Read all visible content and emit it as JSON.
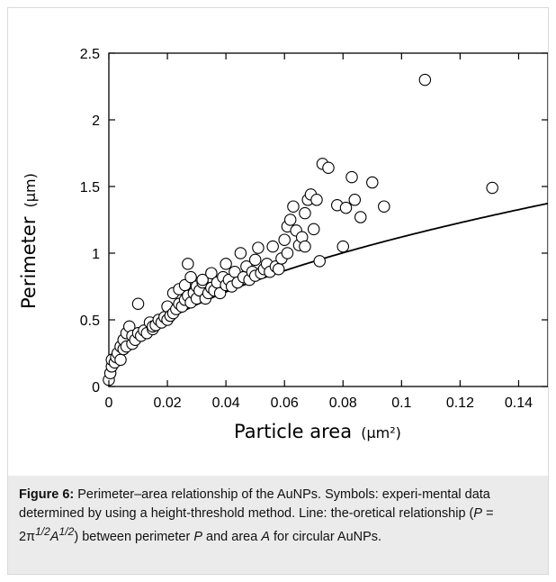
{
  "chart_data": {
    "type": "scatter",
    "xlabel": "Particle area",
    "xunit": "(μm²)",
    "ylabel": "Perimeter",
    "yunit": "(μm)",
    "xlim": [
      0,
      0.15
    ],
    "ylim": [
      0,
      2.5
    ],
    "x_ticks": [
      "0",
      "0.02",
      "0.04",
      "0.06",
      "0.08",
      "0.1",
      "0.12",
      "0.14"
    ],
    "y_ticks": [
      "0",
      "0.5",
      "1",
      "1.5",
      "2",
      "2.5"
    ],
    "grid": false,
    "legend": "none",
    "series": [
      {
        "kind": "scatter-open-circles",
        "points": [
          [
            0.0,
            0.05
          ],
          [
            0.0005,
            0.1
          ],
          [
            0.001,
            0.15
          ],
          [
            0.001,
            0.2
          ],
          [
            0.002,
            0.18
          ],
          [
            0.0025,
            0.22
          ],
          [
            0.003,
            0.25
          ],
          [
            0.004,
            0.3
          ],
          [
            0.004,
            0.2
          ],
          [
            0.005,
            0.28
          ],
          [
            0.005,
            0.35
          ],
          [
            0.006,
            0.3
          ],
          [
            0.006,
            0.4
          ],
          [
            0.007,
            0.45
          ],
          [
            0.008,
            0.32
          ],
          [
            0.008,
            0.38
          ],
          [
            0.009,
            0.35
          ],
          [
            0.01,
            0.4
          ],
          [
            0.01,
            0.62
          ],
          [
            0.011,
            0.38
          ],
          [
            0.012,
            0.42
          ],
          [
            0.013,
            0.4
          ],
          [
            0.014,
            0.48
          ],
          [
            0.015,
            0.43
          ],
          [
            0.015,
            0.45
          ],
          [
            0.016,
            0.46
          ],
          [
            0.017,
            0.5
          ],
          [
            0.018,
            0.48
          ],
          [
            0.019,
            0.52
          ],
          [
            0.02,
            0.5
          ],
          [
            0.02,
            0.6
          ],
          [
            0.021,
            0.53
          ],
          [
            0.022,
            0.55
          ],
          [
            0.022,
            0.7
          ],
          [
            0.023,
            0.58
          ],
          [
            0.024,
            0.62
          ],
          [
            0.024,
            0.73
          ],
          [
            0.025,
            0.6
          ],
          [
            0.026,
            0.65
          ],
          [
            0.026,
            0.76
          ],
          [
            0.027,
            0.68
          ],
          [
            0.027,
            0.92
          ],
          [
            0.028,
            0.63
          ],
          [
            0.028,
            0.82
          ],
          [
            0.029,
            0.7
          ],
          [
            0.03,
            0.66
          ],
          [
            0.03,
            0.75
          ],
          [
            0.031,
            0.72
          ],
          [
            0.032,
            0.78
          ],
          [
            0.032,
            0.8
          ],
          [
            0.033,
            0.66
          ],
          [
            0.034,
            0.7
          ],
          [
            0.035,
            0.74
          ],
          [
            0.035,
            0.85
          ],
          [
            0.036,
            0.72
          ],
          [
            0.037,
            0.78
          ],
          [
            0.038,
            0.7
          ],
          [
            0.039,
            0.82
          ],
          [
            0.04,
            0.76
          ],
          [
            0.04,
            0.92
          ],
          [
            0.041,
            0.8
          ],
          [
            0.042,
            0.75
          ],
          [
            0.043,
            0.86
          ],
          [
            0.044,
            0.78
          ],
          [
            0.045,
            1.0
          ],
          [
            0.046,
            0.82
          ],
          [
            0.047,
            0.9
          ],
          [
            0.048,
            0.8
          ],
          [
            0.049,
            0.86
          ],
          [
            0.05,
            0.83
          ],
          [
            0.05,
            0.95
          ],
          [
            0.051,
            1.04
          ],
          [
            0.052,
            0.85
          ],
          [
            0.053,
            0.88
          ],
          [
            0.054,
            0.92
          ],
          [
            0.055,
            0.86
          ],
          [
            0.056,
            1.05
          ],
          [
            0.057,
            0.9
          ],
          [
            0.058,
            0.88
          ],
          [
            0.059,
            0.96
          ],
          [
            0.06,
            1.1
          ],
          [
            0.061,
            1.0
          ],
          [
            0.061,
            1.2
          ],
          [
            0.062,
            1.25
          ],
          [
            0.063,
            1.35
          ],
          [
            0.064,
            1.17
          ],
          [
            0.065,
            1.06
          ],
          [
            0.066,
            1.12
          ],
          [
            0.067,
            1.05
          ],
          [
            0.067,
            1.3
          ],
          [
            0.068,
            1.4
          ],
          [
            0.069,
            1.44
          ],
          [
            0.07,
            1.18
          ],
          [
            0.071,
            1.4
          ],
          [
            0.072,
            0.94
          ],
          [
            0.073,
            1.67
          ],
          [
            0.075,
            1.64
          ],
          [
            0.078,
            1.36
          ],
          [
            0.08,
            1.05
          ],
          [
            0.081,
            1.34
          ],
          [
            0.083,
            1.57
          ],
          [
            0.084,
            1.4
          ],
          [
            0.086,
            1.27
          ],
          [
            0.09,
            1.53
          ],
          [
            0.094,
            1.35
          ],
          [
            0.108,
            2.3
          ],
          [
            0.131,
            1.49
          ]
        ]
      },
      {
        "kind": "line",
        "equation": "P = 2π^(1/2) A^(1/2)"
      }
    ]
  },
  "caption": {
    "label": "Figure 6:",
    "text_part1": " Perimeter–area relationship of the AuNPs. Symbols: experi-mental data determined by using a height-threshold method. Line: the-oretical relationship (",
    "formula_P": "P",
    "formula_eq": " = 2π",
    "exp_half_1": "1/2",
    "formula_A": "A",
    "exp_half_2": "1/2",
    "text_part2": ") between perimeter ",
    "var_P": "P",
    "text_part3": " and area ",
    "var_A": "A",
    "text_part4": " for circular AuNPs."
  }
}
